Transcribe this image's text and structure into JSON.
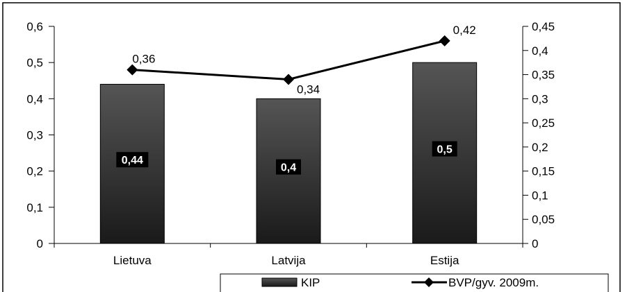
{
  "chart_data": {
    "type": "bar",
    "categories": [
      "Lietuva",
      "Latvija",
      "Estija"
    ],
    "series": [
      {
        "name": "KIP",
        "type": "bar",
        "axis": "left",
        "values": [
          0.44,
          0.4,
          0.5
        ],
        "labels": [
          "0,44",
          "0,4",
          "0,5"
        ]
      },
      {
        "name": "BVP/gyv. 2009m.",
        "type": "line",
        "axis": "right",
        "values": [
          0.36,
          0.34,
          0.42
        ],
        "labels": [
          "0,36",
          "0,34",
          "0,42"
        ]
      }
    ],
    "left_axis": {
      "ylim": [
        0,
        0.6
      ],
      "ticks": [
        "0",
        "0,1",
        "0,2",
        "0,3",
        "0,4",
        "0,5",
        "0,6"
      ]
    },
    "right_axis": {
      "ylim": [
        0,
        0.45
      ],
      "ticks": [
        "0",
        "0,05",
        "0,1",
        "0,15",
        "0,2",
        "0,25",
        "0,3",
        "0,35",
        "0,4",
        "0,45"
      ]
    },
    "legend_position": "bottom",
    "grid": false,
    "colors": {
      "bar": "#262626",
      "line": "#000000",
      "label_bg": "#000000",
      "label_text": "#ffffff"
    }
  }
}
